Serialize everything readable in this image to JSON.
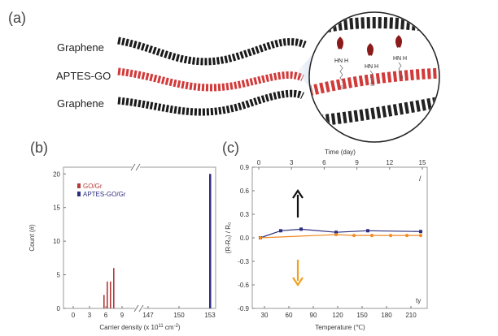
{
  "panel_a": {
    "label": "(a)",
    "layer_labels": [
      "Graphene",
      "APTES-GO",
      "Graphene"
    ],
    "inset_atoms": [
      "H",
      "N",
      "H",
      "Si"
    ],
    "colors": {
      "graphene": "#1a1a1a",
      "apotes_go": "#d23a3a",
      "amine": "#8b1a1a"
    }
  },
  "panel_b": {
    "label": "(b)",
    "y_axis_label": "Count (#)",
    "x_axis_label": "Carrier density (x 10",
    "x_axis_label_exp": "11",
    "x_axis_label_unit": "cm",
    "x_axis_label_unit_exp": "-2",
    "x_axis_label_close": ")",
    "legend": [
      "GO/Gr",
      "APTES-GO/Gr"
    ]
  },
  "panel_c": {
    "label": "(c)",
    "top_axis_label": "Time (day)",
    "bottom_axis_label": "Temperature (℃)",
    "y_axis_label": "(R-R₀) / R₀",
    "corner_texts": [
      "/",
      "ty"
    ]
  },
  "chart_data": [
    {
      "type": "bar",
      "title": "",
      "xlabel": "Carrier density (x 10^11 cm^-2)",
      "ylabel": "Count (#)",
      "ylim": [
        0,
        21
      ],
      "y_ticks": [
        0,
        5,
        10,
        15,
        20
      ],
      "x_ticks": [
        "0",
        "3",
        "6",
        "9",
        "147",
        "150",
        "153"
      ],
      "x_axis_break": [
        9,
        147
      ],
      "series": [
        {
          "name": "GO/Gr",
          "color": "#b53a3a",
          "x": [
            6.3,
            6.9,
            7.5,
            8.1
          ],
          "values": [
            2,
            4,
            4,
            6
          ]
        },
        {
          "name": "APTES-GO/Gr",
          "color": "#2e2e80",
          "x": [
            150.9
          ],
          "values": [
            20
          ]
        }
      ],
      "legend_position": "top-left"
    },
    {
      "type": "line",
      "title": "",
      "xlabel": "Temperature (℃)",
      "x2label": "Time (day)",
      "ylabel": "(R-R₀) / R₀",
      "xlim": [
        15,
        230
      ],
      "ylim": [
        -0.9,
        0.9
      ],
      "x_ticks": [
        30,
        60,
        90,
        120,
        150,
        180,
        210
      ],
      "x2_ticks": [
        0,
        3,
        6,
        9,
        12,
        15
      ],
      "y_ticks": [
        -0.9,
        -0.6,
        -0.3,
        0.0,
        0.3,
        0.6,
        0.9
      ],
      "series": [
        {
          "name": "",
          "color": "#2e2e80",
          "marker": "square",
          "x": [
            25,
            50,
            75,
            118,
            157,
            222
          ],
          "values": [
            0.0,
            0.09,
            0.11,
            0.07,
            0.09,
            0.08
          ]
        },
        {
          "name": "",
          "color": "#f08a24",
          "marker": "circle",
          "x": [
            25,
            118,
            140,
            162,
            185,
            205,
            222
          ],
          "values": [
            0.0,
            0.04,
            0.03,
            0.03,
            0.03,
            0.03,
            0.03
          ]
        }
      ],
      "annotations": [
        {
          "type": "arrow",
          "direction": "up",
          "color": "#111111"
        },
        {
          "type": "arrow",
          "direction": "down",
          "color": "#f0a020"
        }
      ]
    }
  ]
}
